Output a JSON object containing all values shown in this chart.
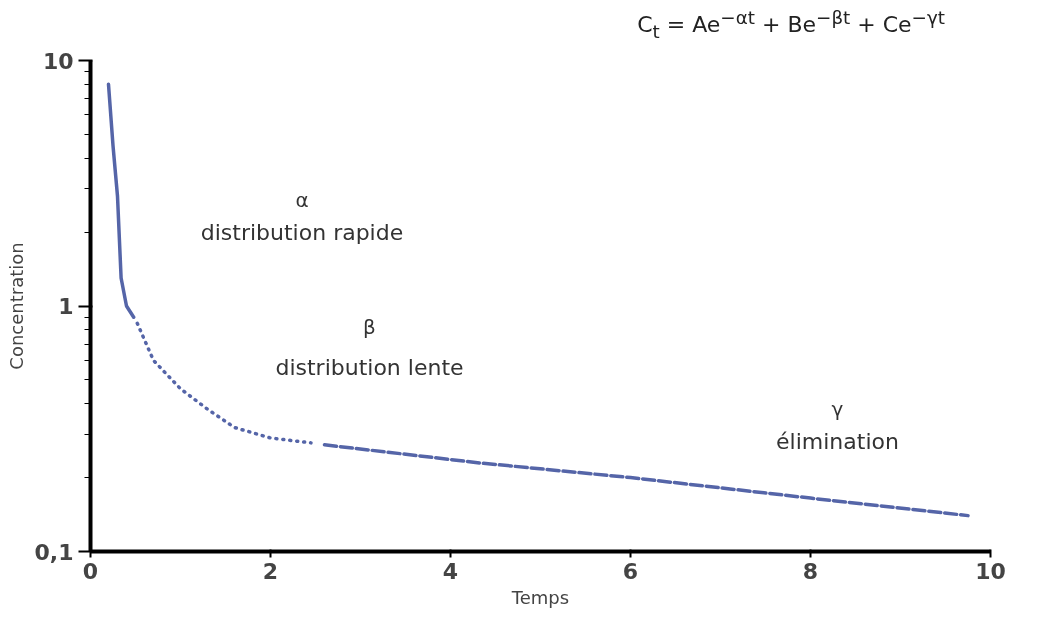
{
  "chart_data": {
    "type": "line",
    "xlabel": "Temps",
    "ylabel": "Concentration",
    "log": "y",
    "xlim": [
      0,
      10
    ],
    "xticks": [
      0,
      2,
      4,
      6,
      8,
      10
    ],
    "ylim": [
      0.1,
      10
    ],
    "yticks": [
      {
        "value": 0.1,
        "label": "0,1"
      },
      1,
      10
    ],
    "grid": false,
    "marker": "none",
    "series": [
      {
        "color": "#5565a8",
        "line_style": "solid",
        "x": [
          0.2,
          0.25,
          0.3,
          0.34,
          0.4,
          0.48
        ],
        "values": [
          8,
          4.5,
          2.8,
          1.3,
          1.0,
          0.9
        ]
      },
      {
        "color": "#5565a8",
        "line_style": "dotted",
        "x": [
          0.52,
          0.7,
          1,
          1.3,
          1.6,
          2,
          2.45
        ],
        "values": [
          0.85,
          0.6,
          0.46,
          0.38,
          0.32,
          0.29,
          0.277
        ]
      },
      {
        "color": "#5565a8",
        "line_style": "dashed",
        "x": [
          2.6,
          4.3,
          6,
          8,
          9.75
        ],
        "values": [
          0.272,
          0.23,
          0.2,
          0.165,
          0.14
        ]
      }
    ],
    "annotations": [
      "C$_{t}$ = Ae$^{−αt}$ + Be$^{−βt}$ + Ce$^{−γt}$",
      "α",
      "distribution rapide",
      "β",
      "distribution lente",
      "γ",
      "élimination"
    ]
  }
}
